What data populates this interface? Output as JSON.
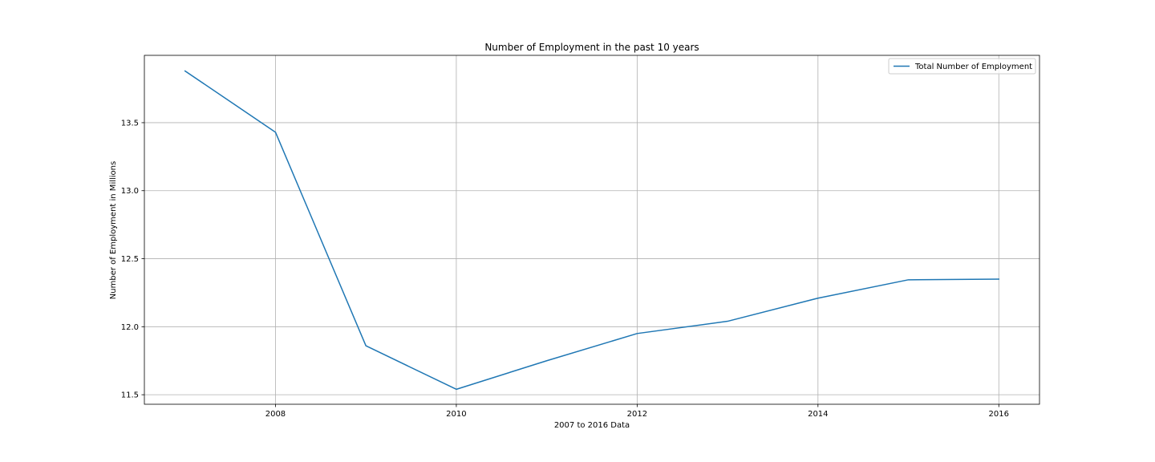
{
  "chart_data": {
    "type": "line",
    "title": "Number of Employment in the past 10 years",
    "xlabel": "2007 to 2016 Data",
    "ylabel": "Number of Employment in Millions",
    "x": [
      2007,
      2008,
      2009,
      2010,
      2011,
      2012,
      2013,
      2014,
      2015,
      2016
    ],
    "series": [
      {
        "name": "Total Number of Employment",
        "values": [
          13.88,
          13.43,
          11.86,
          11.54,
          11.75,
          11.95,
          12.04,
          12.21,
          12.345,
          12.35
        ],
        "color": "#1f77b4"
      }
    ],
    "xlim": [
      2006.55,
      2016.45
    ],
    "ylim": [
      11.43,
      13.995
    ],
    "xticks": [
      2008,
      2010,
      2012,
      2014,
      2016
    ],
    "xtick_labels": [
      "2008",
      "2010",
      "2012",
      "2014",
      "2016"
    ],
    "yticks": [
      11.5,
      12.0,
      12.5,
      13.0,
      13.5
    ],
    "ytick_labels": [
      "11.5",
      "12.0",
      "12.5",
      "13.0",
      "13.5"
    ],
    "grid": true,
    "legend_position": "top-right"
  }
}
